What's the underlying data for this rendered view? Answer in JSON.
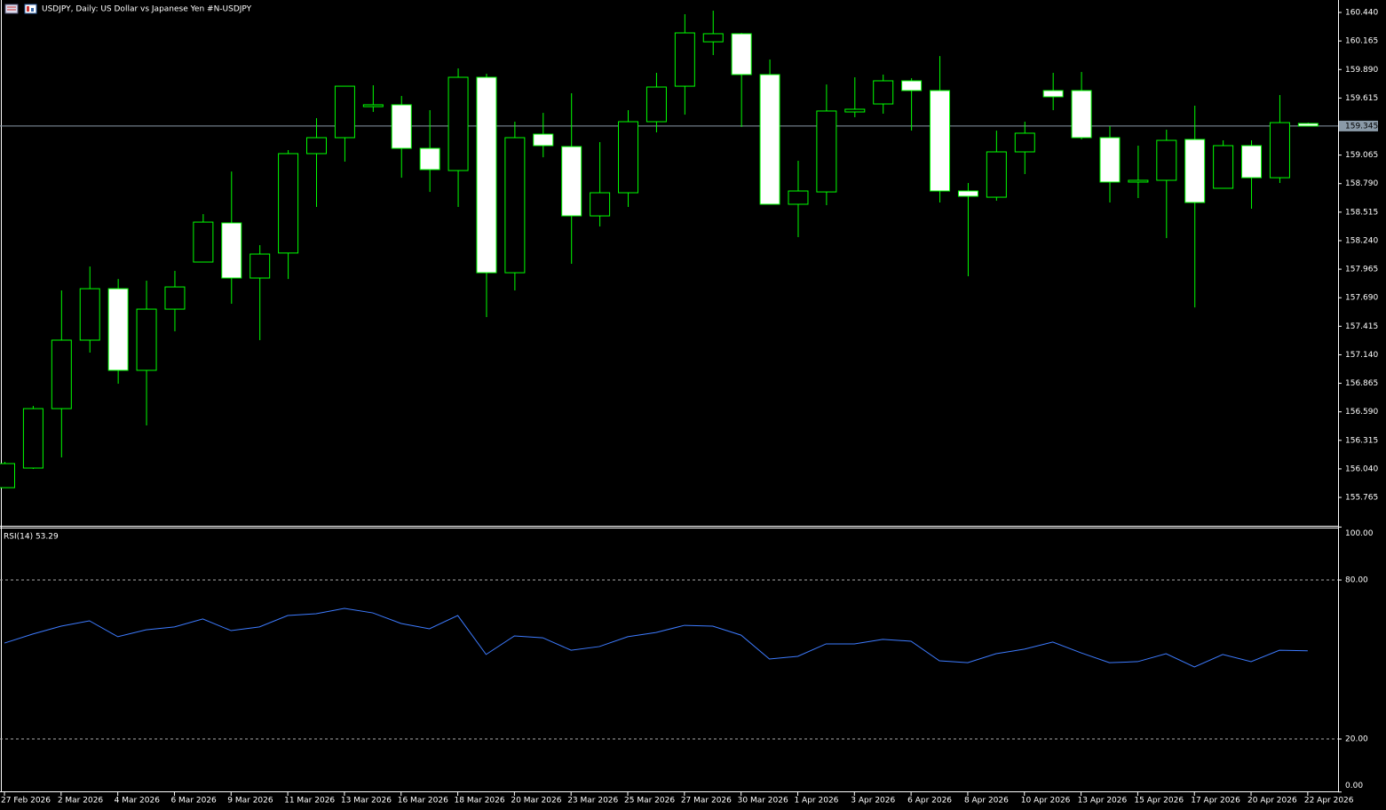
{
  "chart_data": [
    {
      "type": "candlestick",
      "title": "USDJPY, Daily:  US Dollar vs  Japanese Yen #N-USDJPY",
      "categories": [
        "27 Feb 2026",
        null,
        "2 Mar 2026",
        null,
        "4 Mar 2026",
        null,
        "6 Mar 2026",
        null,
        "9 Mar 2026",
        null,
        "11 Mar 2026",
        null,
        "13 Mar 2026",
        null,
        "16 Mar 2026",
        null,
        "18 Mar 2026",
        null,
        "20 Mar 2026",
        null,
        "23 Mar 2026",
        null,
        "25 Mar 2026",
        null,
        "27 Mar 2026",
        null,
        "30 Mar 2026",
        null,
        "1 Apr 2026",
        null,
        "3 Apr 2026",
        null,
        "6 Apr 2026",
        null,
        "8 Apr 2026",
        null,
        "10 Apr 2026",
        null,
        "13 Apr 2026",
        null,
        "15 Apr 2026",
        null,
        "17 Apr 2026",
        null,
        "20 Apr 2026",
        null,
        "22 Apr 2026"
      ],
      "open": [
        155.859,
        156.048,
        156.621,
        157.281,
        157.777,
        156.99,
        157.58,
        158.034,
        158.411,
        157.88,
        158.121,
        159.079,
        159.233,
        159.532,
        159.55,
        159.13,
        158.916,
        159.815,
        157.931,
        159.267,
        159.147,
        158.479,
        158.702,
        159.387,
        159.729,
        160.157,
        160.235,
        159.841,
        158.591,
        158.71,
        159.481,
        159.558,
        159.781,
        159.687,
        158.719,
        158.659,
        159.096,
        159.687,
        159.687,
        159.233,
        158.805,
        158.822,
        159.216,
        158.745,
        159.156,
        158.847,
        159.37
      ],
      "high": [
        156.108,
        156.647,
        157.76,
        157.991,
        157.871,
        157.854,
        157.949,
        158.496,
        158.907,
        158.197,
        159.113,
        159.421,
        159.729,
        159.738,
        159.635,
        159.498,
        159.901,
        159.849,
        159.387,
        159.472,
        159.661,
        159.19,
        159.498,
        159.858,
        160.423,
        160.457,
        160.243,
        159.986,
        159.01,
        159.746,
        159.815,
        159.841,
        159.806,
        160.02,
        158.796,
        159.301,
        159.387,
        159.858,
        159.866,
        159.344,
        159.156,
        159.31,
        159.541,
        159.207,
        159.207,
        159.644,
        159.378
      ],
      "low": [
        155.859,
        156.039,
        156.151,
        157.161,
        156.861,
        156.459,
        157.366,
        158.034,
        157.632,
        157.281,
        157.871,
        158.565,
        159.002,
        159.481,
        158.847,
        158.71,
        158.565,
        157.503,
        157.76,
        159.044,
        158.017,
        158.377,
        158.565,
        159.284,
        159.455,
        160.029,
        159.336,
        158.591,
        158.274,
        158.582,
        159.43,
        159.464,
        159.301,
        158.608,
        157.897,
        158.625,
        158.882,
        159.498,
        159.216,
        158.608,
        158.651,
        158.265,
        157.597,
        158.745,
        158.548,
        158.796,
        159.344
      ],
      "close": [
        156.091,
        156.621,
        157.281,
        157.777,
        156.99,
        157.58,
        157.794,
        158.419,
        157.88,
        158.111,
        159.079,
        159.233,
        159.729,
        159.55,
        159.13,
        158.925,
        159.815,
        157.931,
        159.233,
        159.156,
        158.479,
        158.702,
        159.387,
        159.721,
        160.243,
        160.235,
        159.841,
        158.591,
        158.719,
        159.49,
        159.507,
        159.781,
        159.687,
        158.719,
        158.668,
        159.096,
        159.276,
        159.627,
        159.233,
        158.805,
        158.822,
        159.207,
        158.608,
        159.156,
        158.847,
        159.378,
        159.345
      ],
      "color": "#00ff00",
      "up_fill": "#000000",
      "down_fill": "#ffffff",
      "ylim": [
        155.5,
        160.56
      ],
      "yticks": [
        {
          "value": 160.44,
          "label": "160.440"
        },
        160.165,
        {
          "value": 159.89,
          "label": "159.890"
        },
        159.615,
        159.065,
        {
          "value": 158.79,
          "label": "158.790"
        },
        158.515,
        {
          "value": 158.24,
          "label": "158.240"
        },
        157.965,
        {
          "value": 157.69,
          "label": "157.690"
        },
        157.415,
        {
          "value": 157.14,
          "label": "157.140"
        },
        156.865,
        {
          "value": 156.59,
          "label": "156.590"
        },
        156.315,
        {
          "value": 156.04,
          "label": "156.040"
        },
        155.765
      ],
      "last_price": 159.345,
      "last_price_color": "#8a9aa8"
    },
    {
      "type": "line",
      "title": "RSI(14) 53.29",
      "values": [
        56.2,
        59.6,
        62.6,
        64.6,
        58.6,
        61.2,
        62.3,
        65.3,
        60.9,
        62.3,
        66.6,
        67.3,
        69.3,
        67.6,
        63.6,
        61.6,
        66.6,
        51.9,
        58.9,
        58.2,
        53.5,
        54.9,
        58.6,
        60.2,
        62.9,
        62.6,
        59.2,
        50.2,
        51.2,
        55.9,
        55.9,
        57.6,
        56.9,
        49.5,
        48.8,
        52.2,
        53.9,
        56.6,
        52.5,
        48.8,
        49.2,
        52.2,
        47.2,
        51.9,
        49.2,
        53.5,
        53.29
      ],
      "color": "#3d7bff",
      "ylim": [
        0,
        100
      ],
      "yticks": [
        {
          "value": 100,
          "label": "100.00"
        },
        {
          "value": 80,
          "label": "80.00"
        },
        {
          "value": 20,
          "label": "20.00"
        },
        {
          "value": 0,
          "label": "0.00"
        }
      ]
    }
  ]
}
